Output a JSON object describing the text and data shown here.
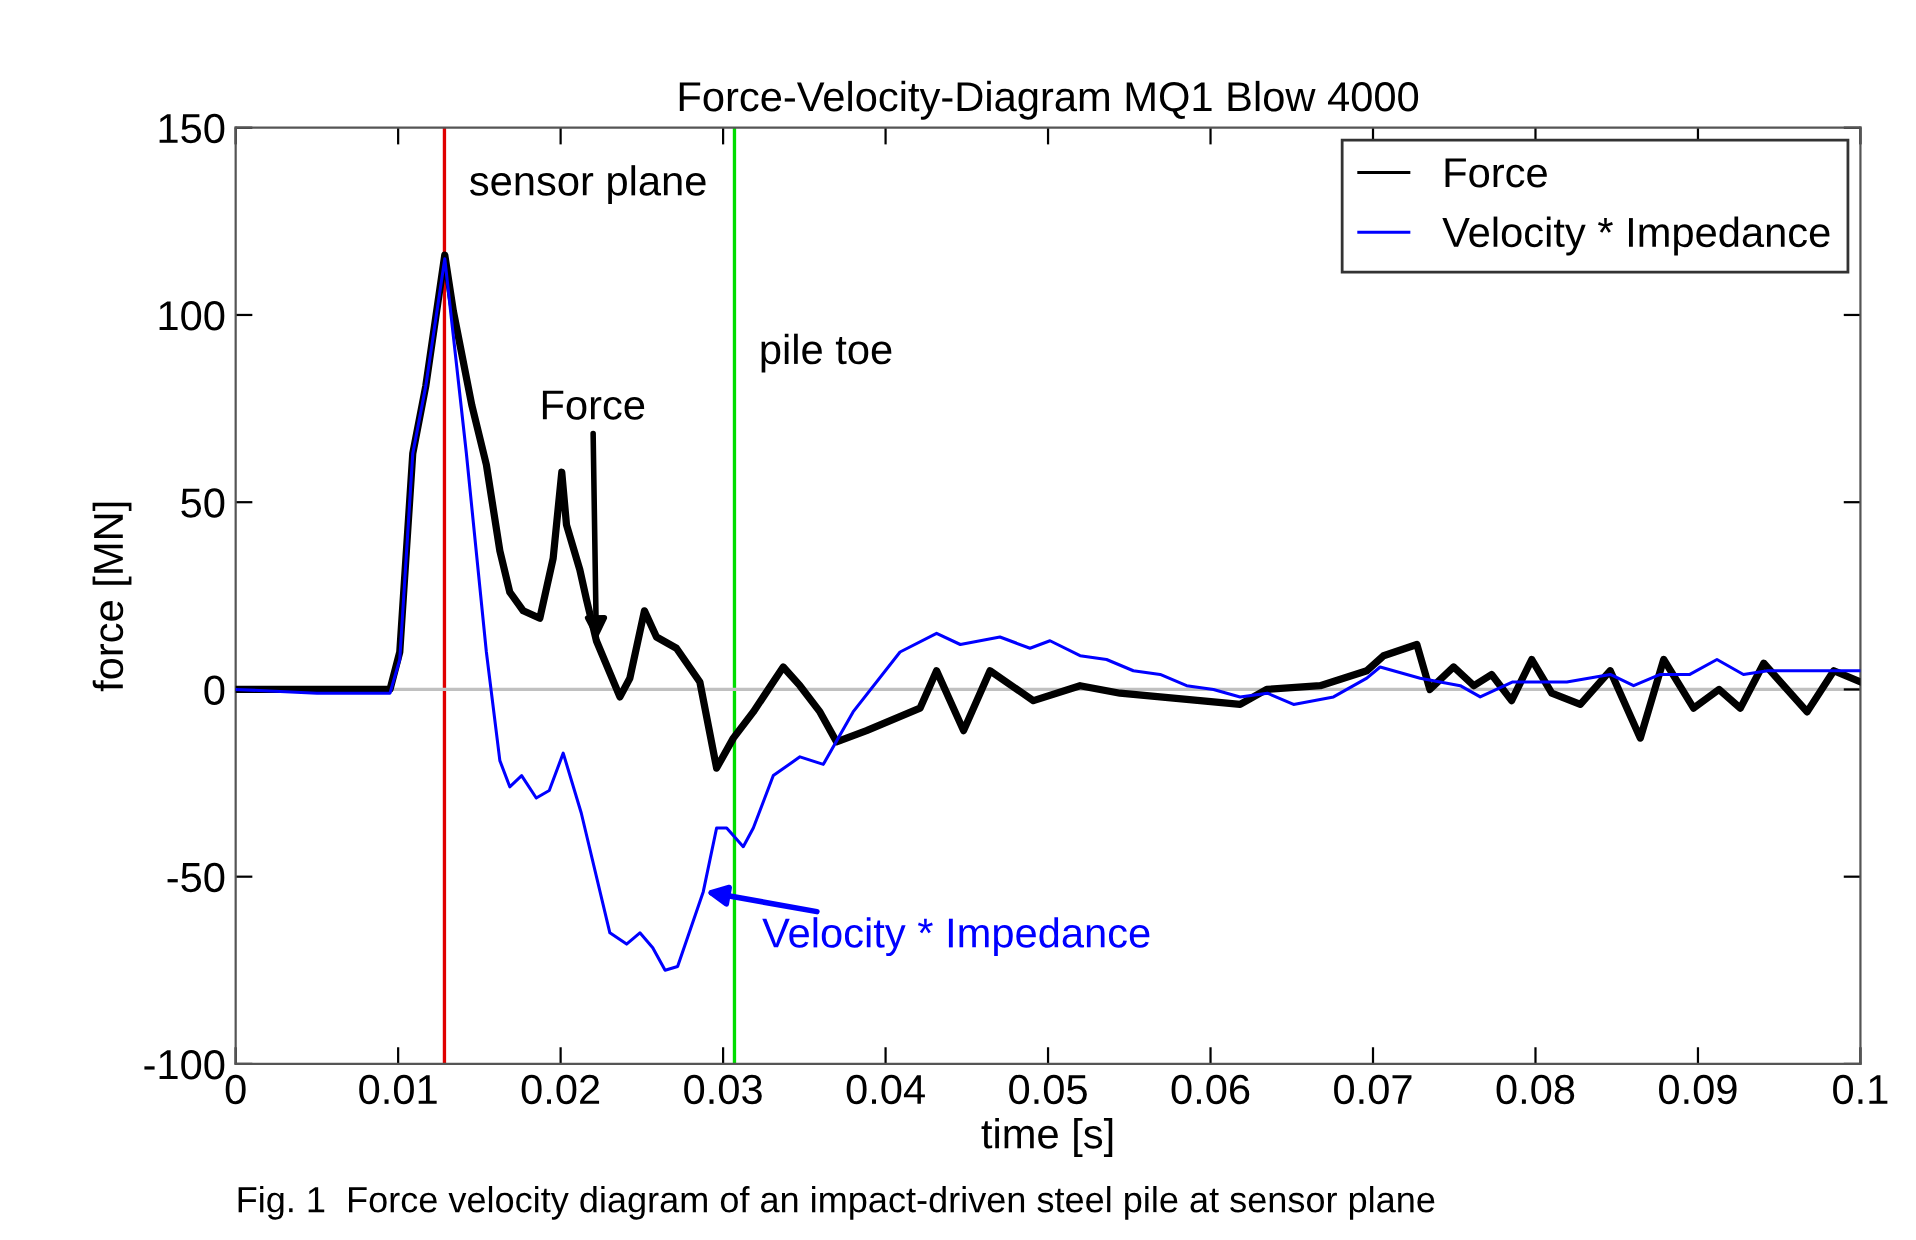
{
  "chart_data": {
    "type": "line",
    "title": "Force-Velocity-Diagram MQ1 Blow 4000",
    "xlabel": "time [s]",
    "ylabel": "force [MN]",
    "xlim": [
      0,
      0.1
    ],
    "ylim": [
      -100,
      150
    ],
    "xticks": [
      0,
      0.01,
      0.02,
      0.03,
      0.04,
      0.05,
      0.06,
      0.07,
      0.08,
      0.09,
      0.1
    ],
    "yticks": [
      -100,
      -50,
      0,
      50,
      100,
      150
    ],
    "grid": false,
    "legend": "top right",
    "series": [
      {
        "name": "Force",
        "color": "#000000",
        "x": [
          0,
          0.005,
          0.0095,
          0.0101,
          0.0109,
          0.0117,
          0.01287,
          0.0134,
          0.01453,
          0.01543,
          0.01626,
          0.01687,
          0.0177,
          0.01872,
          0.01954,
          0.02007,
          0.02036,
          0.02118,
          0.02159,
          0.0222,
          0.02365,
          0.02426,
          0.02516,
          0.0259,
          0.02713,
          0.02857,
          0.0296,
          0.03063,
          0.03186,
          0.0337,
          0.03473,
          0.03596,
          0.03698,
          0.03883,
          0.04212,
          0.04314,
          0.0448,
          0.04643,
          0.0491,
          0.05197,
          0.05443,
          0.05936,
          0.06182,
          0.06346,
          0.06675,
          0.06962,
          0.07065,
          0.0727,
          0.0735,
          0.07496,
          0.0762,
          0.0773,
          0.07853,
          0.07977,
          0.081,
          0.08276,
          0.0846,
          0.08645,
          0.08789,
          0.08973,
          0.0913,
          0.09261,
          0.09405,
          0.09672,
          0.09836,
          0.1
        ],
        "values": [
          0,
          0,
          0,
          10,
          63,
          81,
          116,
          101,
          76,
          60,
          37,
          26,
          21,
          19,
          35,
          58,
          44,
          32,
          24,
          13,
          -2,
          3,
          21,
          14,
          11,
          2,
          -21,
          -13,
          -6,
          6,
          1,
          -6,
          -14,
          -11,
          -5,
          5,
          -11,
          5,
          -3,
          1,
          -1,
          -3,
          -4,
          0,
          1,
          5,
          9,
          12,
          0,
          6,
          1,
          4,
          -3,
          8,
          -1,
          -4,
          5,
          -13,
          8,
          -5,
          0,
          -5,
          7,
          -6,
          5,
          2
        ]
      },
      {
        "name": "Velocity * Impedance",
        "color": "#0000ff",
        "x": [
          0,
          0.005,
          0.0095,
          0.0101,
          0.0109,
          0.0117,
          0.01287,
          0.0142,
          0.01543,
          0.01626,
          0.01687,
          0.0176,
          0.0185,
          0.0193,
          0.02016,
          0.02127,
          0.02303,
          0.02406,
          0.02488,
          0.02567,
          0.02643,
          0.0272,
          0.02878,
          0.0296,
          0.03022,
          0.03124,
          0.03186,
          0.03309,
          0.03473,
          0.03617,
          0.038,
          0.04089,
          0.04314,
          0.0446,
          0.04704,
          0.04889,
          0.05012,
          0.05197,
          0.0536,
          0.05525,
          0.0569,
          0.05853,
          0.06018,
          0.06182,
          0.0635,
          0.06511,
          0.06757,
          0.06962,
          0.07044,
          0.0729,
          0.07537,
          0.0766,
          0.0786,
          0.08193,
          0.0846,
          0.08604,
          0.08768,
          0.0895,
          0.09117,
          0.0928,
          0.09429,
          0.1
        ],
        "values": [
          0,
          -1,
          -1,
          8,
          63,
          81,
          115,
          63,
          10,
          -19,
          -26,
          -23,
          -29,
          -27,
          -17,
          -33,
          -65,
          -68,
          -65,
          -69,
          -75,
          -74,
          -54,
          -37,
          -37,
          -42,
          -37,
          -23,
          -18,
          -20,
          -6,
          10,
          15,
          12,
          14,
          11,
          13,
          9,
          8,
          5,
          4,
          1,
          0,
          -2,
          -1,
          -4,
          -2,
          3,
          6,
          3,
          1,
          -2,
          2,
          2,
          4,
          1,
          4,
          4,
          8,
          4,
          5,
          5
        ]
      }
    ],
    "ref_lines": [
      {
        "axis": "x",
        "value": 0.01285,
        "label": "sensor plane",
        "color": "#e00000"
      },
      {
        "axis": "x",
        "value": 0.0307,
        "label": "pile toe",
        "color": "#00dd00"
      },
      {
        "axis": "y",
        "value": 0,
        "label": null,
        "color": "#c0c0c0"
      }
    ],
    "annotations": [
      {
        "text": "Force",
        "x": 0.0222,
        "y": 13
      },
      {
        "text": "Velocity * Impedance",
        "x": 0.0289,
        "y": -54
      },
      "Fig. 1  Force velocity diagram of an impact-driven steel pile at sensor plane"
    ]
  }
}
